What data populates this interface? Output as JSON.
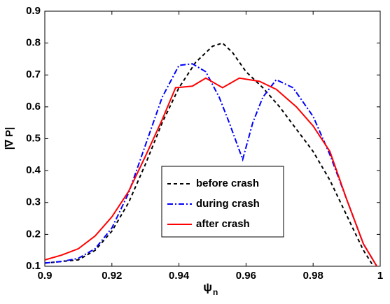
{
  "chart_data": {
    "type": "line",
    "x_label": "ψ",
    "x_label_subscript": "n",
    "y_label": "|∇ P|",
    "xlim": [
      0.9,
      1
    ],
    "ylim": [
      0.1,
      0.9
    ],
    "xticks": [
      0.9,
      0.92,
      0.94,
      0.96,
      0.98,
      1
    ],
    "yticks": [
      0.1,
      0.2,
      0.3,
      0.4,
      0.5,
      0.6,
      0.7,
      0.8,
      0.9
    ],
    "grid": false,
    "legend": "center",
    "series": [
      {
        "name": "before crash",
        "color": "#000000",
        "style": "dashed",
        "x": [
          0.9,
          0.91,
          0.915,
          0.92,
          0.925,
          0.93,
          0.935,
          0.94,
          0.945,
          0.95,
          0.953,
          0.956,
          0.96,
          0.965,
          0.97,
          0.975,
          0.98,
          0.985,
          0.99,
          0.995,
          0.998
        ],
        "values": [
          0.11,
          0.12,
          0.15,
          0.21,
          0.3,
          0.42,
          0.55,
          0.66,
          0.74,
          0.79,
          0.8,
          0.77,
          0.71,
          0.66,
          0.6,
          0.53,
          0.46,
          0.37,
          0.26,
          0.15,
          0.1
        ]
      },
      {
        "name": "during crash",
        "color": "#0000ff",
        "style": "dashdot",
        "x": [
          0.9,
          0.905,
          0.91,
          0.915,
          0.92,
          0.925,
          0.93,
          0.935,
          0.94,
          0.944,
          0.948,
          0.952,
          0.955,
          0.959,
          0.962,
          0.965,
          0.969,
          0.974,
          0.98,
          0.985,
          0.99,
          0.995,
          0.999
        ],
        "values": [
          0.11,
          0.115,
          0.125,
          0.155,
          0.22,
          0.33,
          0.48,
          0.63,
          0.73,
          0.735,
          0.71,
          0.63,
          0.55,
          0.435,
          0.55,
          0.63,
          0.685,
          0.66,
          0.57,
          0.45,
          0.31,
          0.17,
          0.1
        ]
      },
      {
        "name": "after crash",
        "color": "#ff0000",
        "style": "solid",
        "x": [
          0.9,
          0.905,
          0.91,
          0.915,
          0.92,
          0.925,
          0.93,
          0.935,
          0.939,
          0.944,
          0.948,
          0.953,
          0.958,
          0.964,
          0.969,
          0.975,
          0.98,
          0.985,
          0.99,
          0.995,
          0.999
        ],
        "values": [
          0.12,
          0.135,
          0.155,
          0.195,
          0.255,
          0.335,
          0.445,
          0.56,
          0.66,
          0.665,
          0.69,
          0.66,
          0.69,
          0.68,
          0.655,
          0.6,
          0.54,
          0.46,
          0.31,
          0.17,
          0.1
        ]
      }
    ]
  }
}
